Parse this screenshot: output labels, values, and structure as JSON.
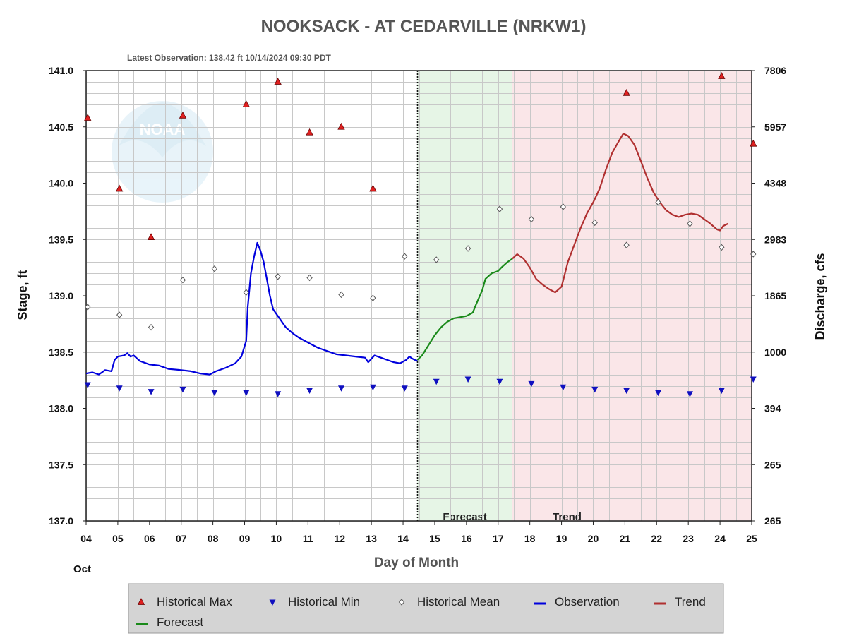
{
  "chart_data": {
    "type": "line",
    "title": "NOOKSACK - AT CEDARVILLE  (NRKW1)",
    "subtitle": "Latest Observation: 138.42 ft 10/14/2024 09:30 PDT",
    "watermark": "NOAA",
    "xlabel": "Day of Month",
    "x_month_label": "Oct",
    "ylabel_left": "Stage, ft",
    "ylabel_right": "Discharge, cfs",
    "xlim": [
      4,
      25
    ],
    "ylim": [
      137.0,
      141.0
    ],
    "x_ticks": [
      "04",
      "05",
      "06",
      "07",
      "08",
      "09",
      "10",
      "11",
      "12",
      "13",
      "14",
      "15",
      "16",
      "17",
      "18",
      "19",
      "20",
      "21",
      "22",
      "23",
      "24",
      "25"
    ],
    "y_ticks_left": [
      "141.0",
      "140.5",
      "140.0",
      "139.5",
      "139.0",
      "138.5",
      "138.0",
      "137.5",
      "137.0"
    ],
    "y_ticks_right": [
      "7806",
      "5957",
      "4348",
      "2983",
      "1865",
      "1000",
      "394",
      "265",
      "265"
    ],
    "grid": true,
    "regions": [
      {
        "label": "Forecast",
        "from": 14.45,
        "to": 17.45,
        "color": "#e6f5e6"
      },
      {
        "label": "Trend",
        "from": 17.45,
        "to": 25.0,
        "color": "#fae6e8"
      }
    ],
    "latest_observation_x": 14.45,
    "series": [
      {
        "name": "Observation",
        "color": "#0000dd",
        "points": [
          [
            4.0,
            138.31
          ],
          [
            4.2,
            138.32
          ],
          [
            4.4,
            138.3
          ],
          [
            4.6,
            138.34
          ],
          [
            4.8,
            138.33
          ],
          [
            4.9,
            138.43
          ],
          [
            5.0,
            138.46
          ],
          [
            5.2,
            138.47
          ],
          [
            5.3,
            138.49
          ],
          [
            5.4,
            138.46
          ],
          [
            5.5,
            138.47
          ],
          [
            5.7,
            138.42
          ],
          [
            6.0,
            138.39
          ],
          [
            6.3,
            138.38
          ],
          [
            6.6,
            138.35
          ],
          [
            7.0,
            138.34
          ],
          [
            7.3,
            138.33
          ],
          [
            7.6,
            138.31
          ],
          [
            7.9,
            138.3
          ],
          [
            8.1,
            138.33
          ],
          [
            8.4,
            138.36
          ],
          [
            8.7,
            138.4
          ],
          [
            8.9,
            138.46
          ],
          [
            9.05,
            138.6
          ],
          [
            9.1,
            138.9
          ],
          [
            9.2,
            139.2
          ],
          [
            9.3,
            139.35
          ],
          [
            9.4,
            139.47
          ],
          [
            9.5,
            139.4
          ],
          [
            9.6,
            139.3
          ],
          [
            9.7,
            139.15
          ],
          [
            9.8,
            139.0
          ],
          [
            9.9,
            138.88
          ],
          [
            10.1,
            138.8
          ],
          [
            10.3,
            138.72
          ],
          [
            10.5,
            138.67
          ],
          [
            10.7,
            138.63
          ],
          [
            10.9,
            138.6
          ],
          [
            11.1,
            138.57
          ],
          [
            11.3,
            138.54
          ],
          [
            11.5,
            138.52
          ],
          [
            11.7,
            138.5
          ],
          [
            11.9,
            138.48
          ],
          [
            12.2,
            138.47
          ],
          [
            12.5,
            138.46
          ],
          [
            12.8,
            138.45
          ],
          [
            12.9,
            138.41
          ],
          [
            13.0,
            138.44
          ],
          [
            13.1,
            138.47
          ],
          [
            13.3,
            138.45
          ],
          [
            13.5,
            138.43
          ],
          [
            13.7,
            138.41
          ],
          [
            13.9,
            138.4
          ],
          [
            14.1,
            138.43
          ],
          [
            14.2,
            138.46
          ],
          [
            14.3,
            138.44
          ],
          [
            14.45,
            138.42
          ]
        ]
      },
      {
        "name": "Forecast",
        "color": "#1a8a1a",
        "points": [
          [
            14.45,
            138.43
          ],
          [
            14.6,
            138.47
          ],
          [
            14.8,
            138.56
          ],
          [
            15.0,
            138.65
          ],
          [
            15.2,
            138.72
          ],
          [
            15.4,
            138.77
          ],
          [
            15.6,
            138.8
          ],
          [
            15.8,
            138.81
          ],
          [
            16.0,
            138.82
          ],
          [
            16.2,
            138.85
          ],
          [
            16.3,
            138.92
          ],
          [
            16.5,
            139.05
          ],
          [
            16.6,
            139.15
          ],
          [
            16.8,
            139.2
          ],
          [
            17.0,
            139.22
          ],
          [
            17.1,
            139.25
          ],
          [
            17.3,
            139.3
          ],
          [
            17.45,
            139.33
          ]
        ]
      },
      {
        "name": "Trend",
        "color": "#b03030",
        "points": [
          [
            17.45,
            139.33
          ],
          [
            17.6,
            139.37
          ],
          [
            17.8,
            139.33
          ],
          [
            18.0,
            139.25
          ],
          [
            18.2,
            139.15
          ],
          [
            18.4,
            139.1
          ],
          [
            18.6,
            139.06
          ],
          [
            18.8,
            139.03
          ],
          [
            19.0,
            139.08
          ],
          [
            19.2,
            139.3
          ],
          [
            19.4,
            139.45
          ],
          [
            19.6,
            139.6
          ],
          [
            19.8,
            139.73
          ],
          [
            20.0,
            139.83
          ],
          [
            20.2,
            139.95
          ],
          [
            20.4,
            140.12
          ],
          [
            20.6,
            140.27
          ],
          [
            20.8,
            140.37
          ],
          [
            20.95,
            140.44
          ],
          [
            21.1,
            140.42
          ],
          [
            21.3,
            140.34
          ],
          [
            21.5,
            140.2
          ],
          [
            21.7,
            140.05
          ],
          [
            21.9,
            139.92
          ],
          [
            22.1,
            139.83
          ],
          [
            22.3,
            139.76
          ],
          [
            22.5,
            139.72
          ],
          [
            22.7,
            139.7
          ],
          [
            22.9,
            139.72
          ],
          [
            23.1,
            139.73
          ],
          [
            23.3,
            139.72
          ],
          [
            23.5,
            139.68
          ],
          [
            23.7,
            139.64
          ],
          [
            23.9,
            139.59
          ],
          [
            24.0,
            139.58
          ],
          [
            24.1,
            139.62
          ],
          [
            24.25,
            139.64
          ]
        ]
      }
    ],
    "markers": [
      {
        "name": "Historical Max",
        "color": "#e02020",
        "points": [
          [
            4.05,
            140.58
          ],
          [
            5.05,
            139.95
          ],
          [
            6.05,
            139.52
          ],
          [
            7.05,
            140.6
          ],
          [
            9.05,
            140.7
          ],
          [
            10.05,
            140.9
          ],
          [
            11.05,
            140.45
          ],
          [
            12.05,
            140.5
          ],
          [
            13.05,
            139.95
          ],
          [
            21.05,
            140.8
          ],
          [
            24.05,
            140.95
          ],
          [
            25.05,
            140.35
          ]
        ]
      },
      {
        "name": "Historical Min",
        "color": "#1010c0",
        "points": [
          [
            4.05,
            138.21
          ],
          [
            5.05,
            138.18
          ],
          [
            6.05,
            138.15
          ],
          [
            7.05,
            138.17
          ],
          [
            8.05,
            138.14
          ],
          [
            9.05,
            138.14
          ],
          [
            10.05,
            138.13
          ],
          [
            11.05,
            138.16
          ],
          [
            12.05,
            138.18
          ],
          [
            13.05,
            138.19
          ],
          [
            14.05,
            138.18
          ],
          [
            15.05,
            138.24
          ],
          [
            16.05,
            138.26
          ],
          [
            17.05,
            138.24
          ],
          [
            18.05,
            138.22
          ],
          [
            19.05,
            138.19
          ],
          [
            20.05,
            138.17
          ],
          [
            21.05,
            138.16
          ],
          [
            22.05,
            138.14
          ],
          [
            23.05,
            138.13
          ],
          [
            24.05,
            138.16
          ],
          [
            25.05,
            138.26
          ]
        ]
      },
      {
        "name": "Historical Mean",
        "color": "#555555",
        "points": [
          [
            4.05,
            138.9
          ],
          [
            5.05,
            138.83
          ],
          [
            6.05,
            138.72
          ],
          [
            7.05,
            139.14
          ],
          [
            8.05,
            139.24
          ],
          [
            9.05,
            139.03
          ],
          [
            10.05,
            139.17
          ],
          [
            11.05,
            139.16
          ],
          [
            12.05,
            139.01
          ],
          [
            13.05,
            138.98
          ],
          [
            14.05,
            139.35
          ],
          [
            15.05,
            139.32
          ],
          [
            16.05,
            139.42
          ],
          [
            17.05,
            139.77
          ],
          [
            18.05,
            139.68
          ],
          [
            19.05,
            139.79
          ],
          [
            20.05,
            139.65
          ],
          [
            21.05,
            139.45
          ],
          [
            22.05,
            139.83
          ],
          [
            23.05,
            139.64
          ],
          [
            24.05,
            139.43
          ],
          [
            25.05,
            139.37
          ]
        ]
      }
    ],
    "legend_position": "bottom",
    "legend": [
      {
        "label": "Historical Max",
        "symbol": "triangle-up",
        "color": "#e02020"
      },
      {
        "label": "Historical Min",
        "symbol": "triangle-down",
        "color": "#1010c0"
      },
      {
        "label": "Historical Mean",
        "symbol": "diamond",
        "color": "#555555"
      },
      {
        "label": "Observation",
        "symbol": "line",
        "color": "#0000dd"
      },
      {
        "label": "Trend",
        "symbol": "line",
        "color": "#b03030"
      },
      {
        "label": "Forecast",
        "symbol": "line",
        "color": "#1a8a1a"
      }
    ]
  }
}
